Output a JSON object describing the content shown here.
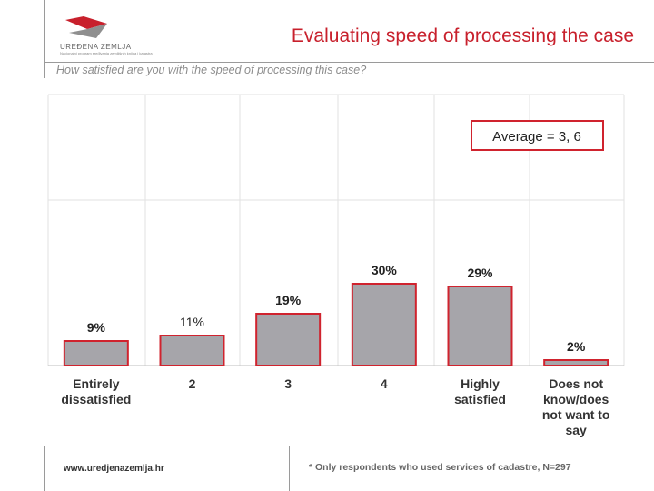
{
  "header": {
    "title": "Evaluating speed of processing the case",
    "subtitle": "How satisfied are you with the speed of processing this case?",
    "logo_text": "UREĐENA ZEMLJA",
    "logo_subtext": "Nacionalni program sređivanja zemljišnih knjiga i katastra"
  },
  "chart_data": {
    "type": "bar",
    "categories": [
      "Entirely dissatisfied",
      "2",
      "3",
      "4",
      "Highly satisfied",
      "Does not know/does not want to say"
    ],
    "values": [
      9,
      11,
      19,
      30,
      29,
      2
    ],
    "value_labels": [
      "9%",
      "11%",
      "19%",
      "30%",
      "29%",
      "2%"
    ],
    "annotation": "Average = 3, 6",
    "ylim": [
      0,
      100
    ],
    "grid": true,
    "colors": {
      "bar": "#a6a5aa",
      "bar_border": "#d0232e",
      "box_border": "#d0232e",
      "grid": "#e2e2e2"
    }
  },
  "footer": {
    "url": "www.uredjenazemlja.hr",
    "footnote": "* Only respondents who used services of cadastre, N=297"
  }
}
